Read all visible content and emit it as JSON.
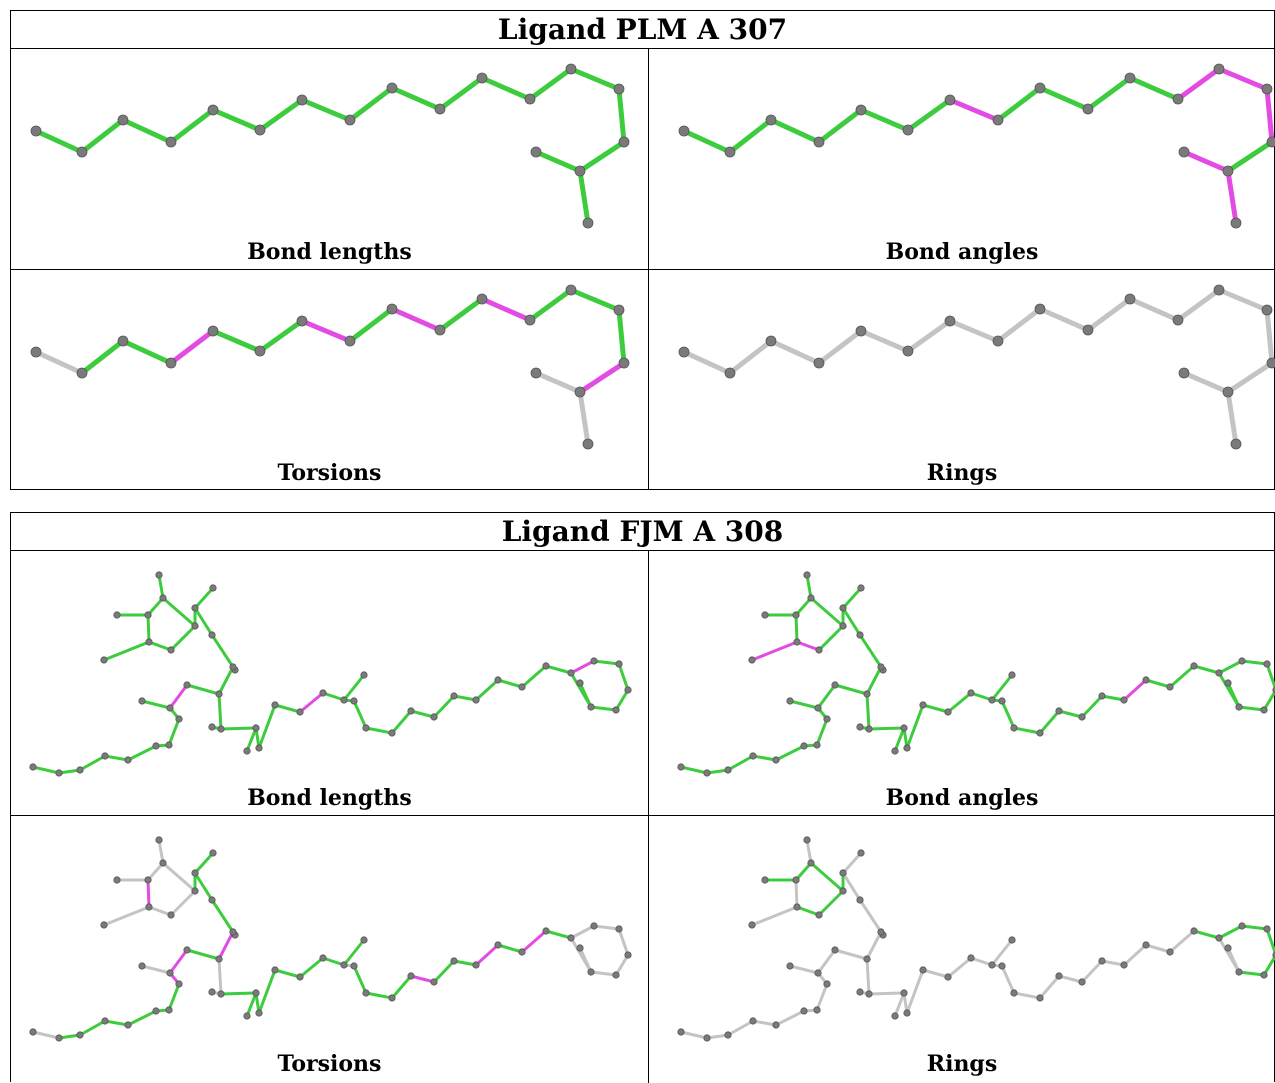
{
  "colors": {
    "ok": "#3dcc3d",
    "outlier": "#e34ce3",
    "neutral": "#c4c4c4",
    "atom": "#7a7a7a"
  },
  "panels": [
    {
      "title": "Ligand PLM A 307",
      "cells": [
        {
          "label": "Bond lengths"
        },
        {
          "label": "Bond angles"
        },
        {
          "label": "Torsions"
        },
        {
          "label": "Rings"
        }
      ]
    },
    {
      "title": "Ligand FJM A 308",
      "cells": [
        {
          "label": "Bond lengths"
        },
        {
          "label": "Bond angles"
        },
        {
          "label": "Torsions"
        },
        {
          "label": "Rings"
        }
      ]
    }
  ]
}
